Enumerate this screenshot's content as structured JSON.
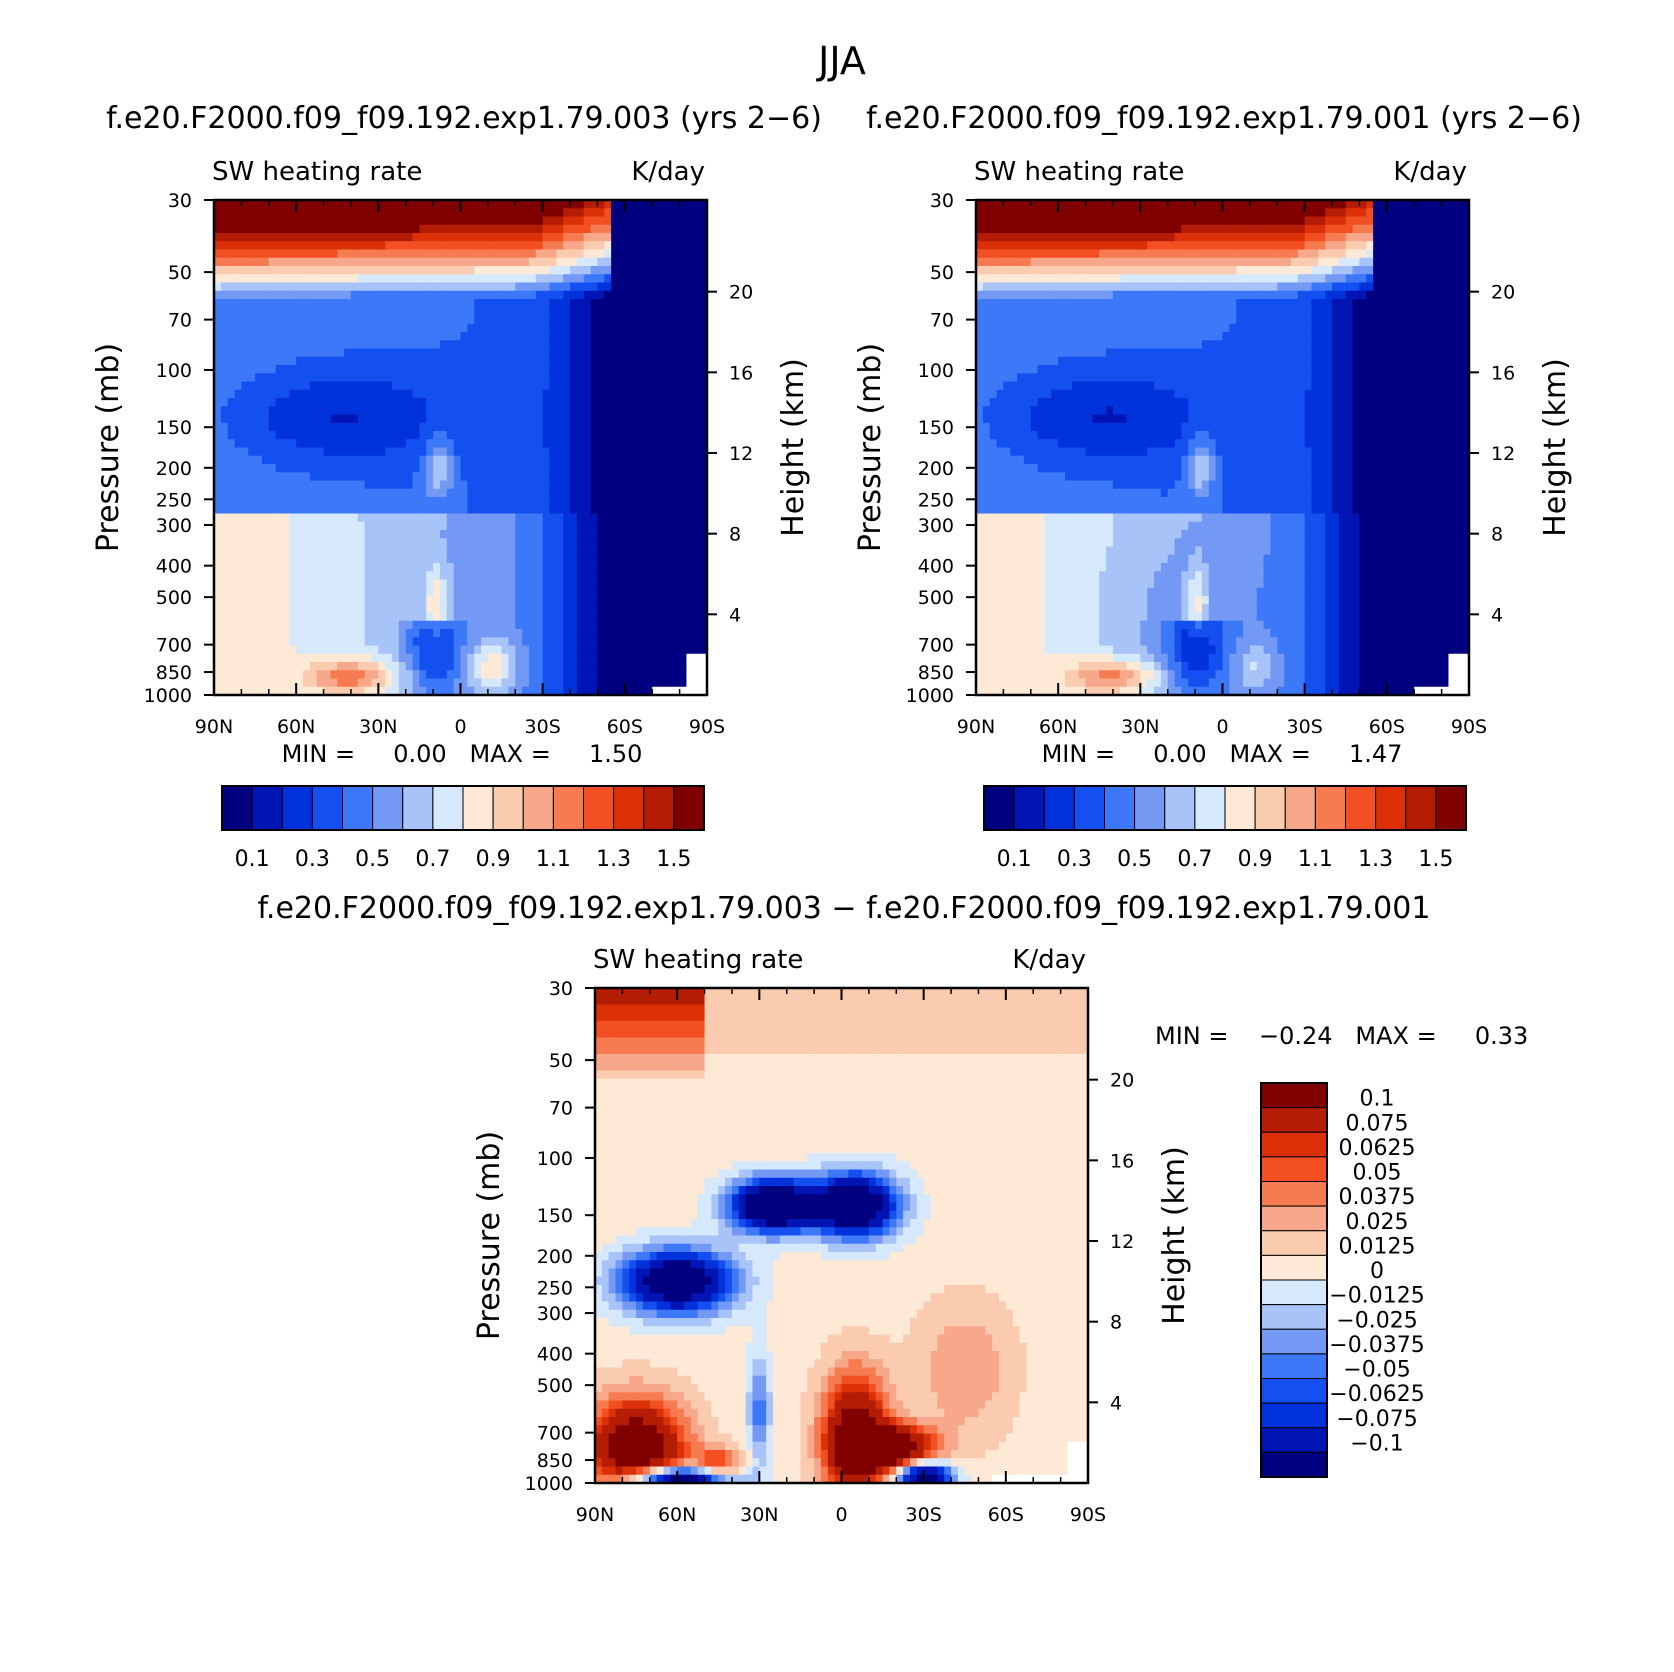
{
  "page_title": "JJA",
  "panels": [
    {
      "id": "p1",
      "case_title": "f.e20.F2000.f09_f09.192.exp1.79.003 (yrs 2−6)",
      "left_string": "SW heating rate",
      "right_string": "K/day",
      "stats": "MIN =     0.00   MAX =     1.50"
    },
    {
      "id": "p2",
      "case_title": "f.e20.F2000.f09_f09.192.exp1.79.001 (yrs 2−6)",
      "left_string": "SW heating rate",
      "right_string": "K/day",
      "stats": "MIN =     0.00   MAX =     1.47"
    },
    {
      "id": "p3",
      "case_title": "f.e20.F2000.f09_f09.192.exp1.79.003 − f.e20.F2000.f09_f09.192.exp1.79.001",
      "left_string": "SW heating rate",
      "right_string": "K/day",
      "stats": "MIN =    −0.24   MAX =     0.33"
    }
  ],
  "chart_data": [
    {
      "type": "heatmap",
      "panel": "p1",
      "title": "f.e20.F2000.f09_f09.192.exp1.79.003 (yrs 2−6)",
      "xlabel": "",
      "ylabel": "Pressure (mb)",
      "y2label": "Height (km)",
      "x_ticks": [
        "90N",
        "60N",
        "30N",
        "0",
        "30S",
        "60S",
        "90S"
      ],
      "x_values": [
        90,
        60,
        30,
        0,
        -30,
        -60,
        -90
      ],
      "y_ticks": [
        "30",
        "50",
        "70",
        "100",
        "150",
        "200",
        "250",
        "300",
        "400",
        "500",
        "700",
        "850",
        "1000"
      ],
      "y_values": [
        30,
        50,
        70,
        100,
        150,
        200,
        250,
        300,
        400,
        500,
        700,
        850,
        1000
      ],
      "y2_ticks": [
        "20",
        "16",
        "12",
        "8",
        "4"
      ],
      "y2_values": [
        20,
        16,
        12,
        8,
        4
      ],
      "ylim": [
        1000,
        30
      ],
      "y_scale": "log",
      "min": 0.0,
      "max": 1.5,
      "colorbar_labels": [
        "0.1",
        "0.3",
        "0.5",
        "0.7",
        "0.9",
        "1.1",
        "1.3",
        "1.5"
      ],
      "levels": [
        0.1,
        0.2,
        0.3,
        0.4,
        0.5,
        0.6,
        0.7,
        0.8,
        0.9,
        1.0,
        1.1,
        1.2,
        1.3,
        1.4,
        1.5
      ],
      "colors": [
        "#000080",
        "#0015b4",
        "#0032dc",
        "#1450f0",
        "#3c78f8",
        "#7399f4",
        "#a8c3f8",
        "#d6e8fc",
        "#fde9d6",
        "#fbcbb0",
        "#f8a88a",
        "#f67b50",
        "#f25022",
        "#dc3008",
        "#b41c04",
        "#800000"
      ]
    },
    {
      "type": "heatmap",
      "panel": "p2",
      "title": "f.e20.F2000.f09_f09.192.exp1.79.001 (yrs 2−6)",
      "xlabel": "",
      "ylabel": "Pressure (mb)",
      "y2label": "Height (km)",
      "x_ticks": [
        "90N",
        "60N",
        "30N",
        "0",
        "30S",
        "60S",
        "90S"
      ],
      "x_values": [
        90,
        60,
        30,
        0,
        -30,
        -60,
        -90
      ],
      "y_ticks": [
        "30",
        "50",
        "70",
        "100",
        "150",
        "200",
        "250",
        "300",
        "400",
        "500",
        "700",
        "850",
        "1000"
      ],
      "y_values": [
        30,
        50,
        70,
        100,
        150,
        200,
        250,
        300,
        400,
        500,
        700,
        850,
        1000
      ],
      "y2_ticks": [
        "20",
        "16",
        "12",
        "8",
        "4"
      ],
      "y2_values": [
        20,
        16,
        12,
        8,
        4
      ],
      "ylim": [
        1000,
        30
      ],
      "y_scale": "log",
      "min": 0.0,
      "max": 1.47,
      "colorbar_labels": [
        "0.1",
        "0.3",
        "0.5",
        "0.7",
        "0.9",
        "1.1",
        "1.3",
        "1.5"
      ],
      "levels": [
        0.1,
        0.2,
        0.3,
        0.4,
        0.5,
        0.6,
        0.7,
        0.8,
        0.9,
        1.0,
        1.1,
        1.2,
        1.3,
        1.4,
        1.5
      ],
      "colors": [
        "#000080",
        "#0015b4",
        "#0032dc",
        "#1450f0",
        "#3c78f8",
        "#7399f4",
        "#a8c3f8",
        "#d6e8fc",
        "#fde9d6",
        "#fbcbb0",
        "#f8a88a",
        "#f67b50",
        "#f25022",
        "#dc3008",
        "#b41c04",
        "#800000"
      ]
    },
    {
      "type": "heatmap",
      "panel": "p3",
      "title": "f.e20.F2000.f09_f09.192.exp1.79.003 − f.e20.F2000.f09_f09.192.exp1.79.001",
      "xlabel": "",
      "ylabel": "Pressure (mb)",
      "y2label": "Height (km)",
      "x_ticks": [
        "90N",
        "60N",
        "30N",
        "0",
        "30S",
        "60S",
        "90S"
      ],
      "x_values": [
        90,
        60,
        30,
        0,
        -30,
        -60,
        -90
      ],
      "y_ticks": [
        "30",
        "50",
        "70",
        "100",
        "150",
        "200",
        "250",
        "300",
        "400",
        "500",
        "700",
        "850",
        "1000"
      ],
      "y_values": [
        30,
        50,
        70,
        100,
        150,
        200,
        250,
        300,
        400,
        500,
        700,
        850,
        1000
      ],
      "y2_ticks": [
        "20",
        "16",
        "12",
        "8",
        "4"
      ],
      "y2_values": [
        20,
        16,
        12,
        8,
        4
      ],
      "ylim": [
        1000,
        30
      ],
      "y_scale": "log",
      "min": -0.24,
      "max": 0.33,
      "colorbar_labels": [
        "0.1",
        "0.075",
        "0.0625",
        "0.05",
        "0.0375",
        "0.025",
        "0.0125",
        "0",
        "−0.0125",
        "−0.025",
        "−0.0375",
        "−0.05",
        "−0.0625",
        "−0.075",
        "−0.1"
      ],
      "levels": [
        -0.1,
        -0.075,
        -0.0625,
        -0.05,
        -0.0375,
        -0.025,
        -0.0125,
        0,
        0.0125,
        0.025,
        0.0375,
        0.05,
        0.0625,
        0.075,
        0.1
      ],
      "colors": [
        "#000080",
        "#0015b4",
        "#0032dc",
        "#1450f0",
        "#3c78f8",
        "#7399f4",
        "#a8c3f8",
        "#d6e8fc",
        "#fde9d6",
        "#fbcbb0",
        "#f8a88a",
        "#f67b50",
        "#f25022",
        "#dc3008",
        "#b41c04",
        "#800000"
      ]
    }
  ]
}
